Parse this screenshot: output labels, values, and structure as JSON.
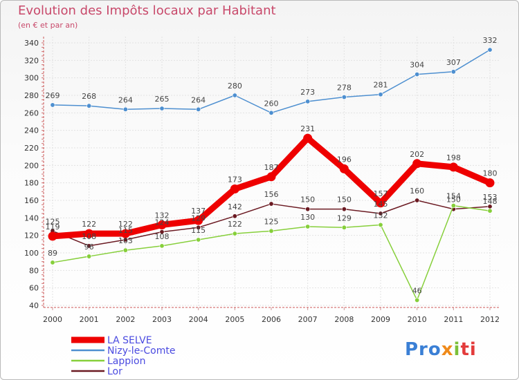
{
  "title": "Evolution des Impôts locaux par Habitant",
  "subtitle": "(en € et par an)",
  "logo": {
    "part1": "Pro",
    "part2": "x",
    "part3": "i",
    "part4": "ti"
  },
  "chart_data": {
    "type": "line",
    "title": "Evolution des Impôts locaux par Habitant",
    "subtitle": "(en € et par an)",
    "xlabel": "",
    "ylabel": "",
    "x": [
      "2000",
      "2001",
      "2002",
      "2003",
      "2004",
      "2005",
      "2006",
      "2007",
      "2008",
      "2009",
      "2010",
      "2011",
      "2012"
    ],
    "ylim": [
      40,
      340
    ],
    "yticks": [
      40,
      60,
      80,
      100,
      120,
      140,
      160,
      180,
      200,
      220,
      240,
      260,
      280,
      300,
      320,
      340
    ],
    "grid": true,
    "legend_position": "bottom-left",
    "series": [
      {
        "name": "Nizy-le-Comte",
        "color": "#4d8fd0",
        "values": [
          269,
          268,
          264,
          265,
          264,
          280,
          260,
          273,
          278,
          281,
          304,
          307,
          332
        ]
      },
      {
        "name": "Lor",
        "color": "#6b1a22",
        "values": [
          125,
          108,
          115,
          124,
          129,
          142,
          156,
          150,
          150,
          145,
          160,
          150,
          153
        ]
      },
      {
        "name": "Lappion",
        "color": "#86cf3a",
        "values": [
          89,
          96,
          103,
          108,
          115,
          122,
          125,
          130,
          129,
          132,
          46,
          154,
          148
        ]
      },
      {
        "name": "LA SELVE",
        "color": "#ee0000",
        "values": [
          119,
          122,
          122,
          132,
          137,
          173,
          187,
          231,
          196,
          157,
          202,
          198,
          180
        ]
      }
    ],
    "legend_order": [
      "LA SELVE",
      "Nizy-le-Comte",
      "Lappion",
      "Lor"
    ]
  }
}
